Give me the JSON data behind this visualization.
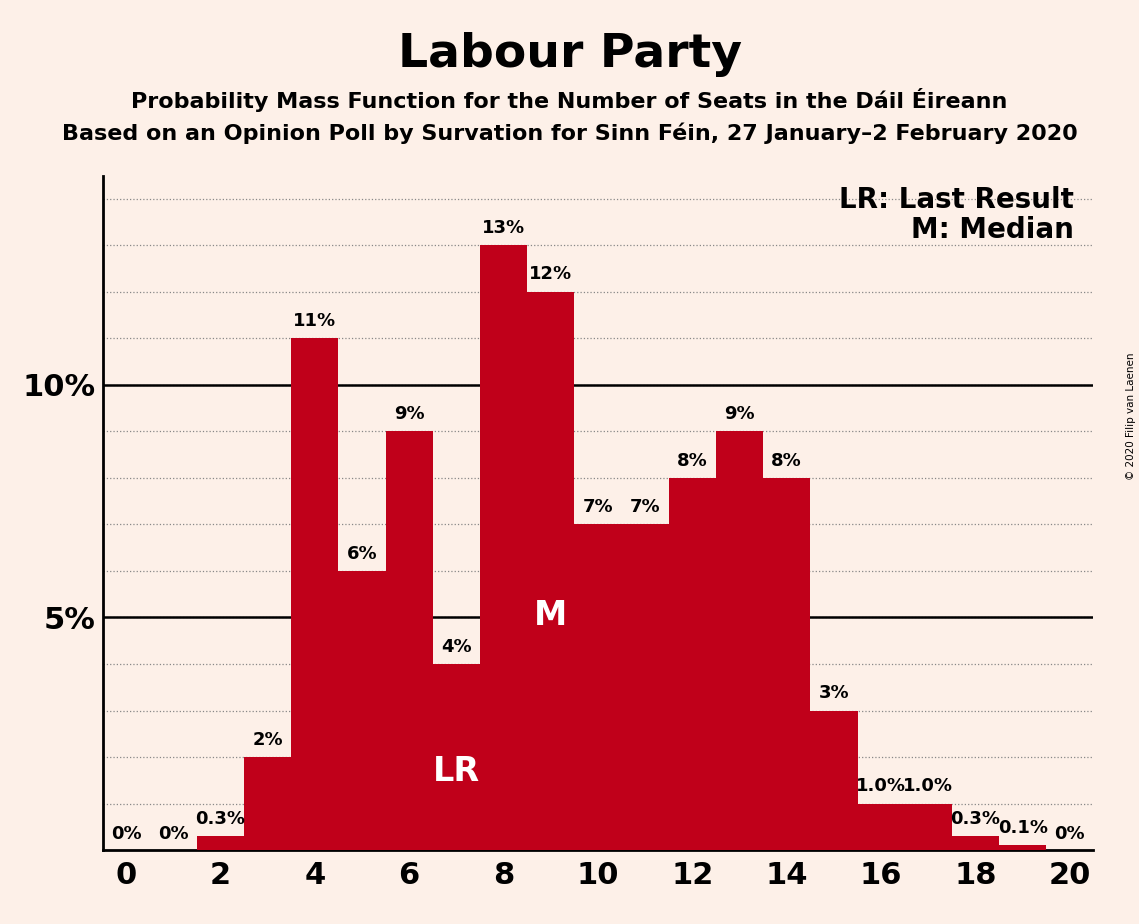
{
  "title": "Labour Party",
  "subtitle1": "Probability Mass Function for the Number of Seats in the Dáil Éireann",
  "subtitle2": "Based on an Opinion Poll by Survation for Sinn Féin, 27 January–2 February 2020",
  "copyright": "© 2020 Filip van Laenen",
  "seats": [
    0,
    1,
    2,
    3,
    4,
    5,
    6,
    7,
    8,
    9,
    10,
    11,
    12,
    13,
    14,
    15,
    16,
    17,
    18,
    19,
    20
  ],
  "probabilities": [
    0.0,
    0.0,
    0.3,
    2.0,
    11.0,
    6.0,
    9.0,
    4.0,
    13.0,
    12.0,
    7.0,
    7.0,
    8.0,
    9.0,
    8.0,
    3.0,
    1.0,
    1.0,
    0.3,
    0.1,
    0.0
  ],
  "bar_color": "#C0001A",
  "background_color": "#FDF0E8",
  "labels": [
    "0%",
    "0%",
    "0.3%",
    "2%",
    "11%",
    "6%",
    "9%",
    "4%",
    "13%",
    "12%",
    "7%",
    "7%",
    "8%",
    "9%",
    "8%",
    "3%",
    "1.0%",
    "1.0%",
    "0.3%",
    "0.1%",
    "0%"
  ],
  "median_seat": 9,
  "lr_seat": 7,
  "xlim": [
    -0.5,
    20.5
  ],
  "ylim": [
    0,
    14.5
  ],
  "xticks": [
    0,
    2,
    4,
    6,
    8,
    10,
    12,
    14,
    16,
    18,
    20
  ],
  "grid_color": "#888888",
  "lr_label": "LR",
  "median_label": "M",
  "legend_lr": "LR: Last Result",
  "legend_m": "M: Median",
  "title_fontsize": 34,
  "subtitle_fontsize": 16,
  "bar_label_fontsize": 13,
  "axis_tick_fontsize": 22,
  "legend_fontsize": 20,
  "inner_label_fontsize": 24
}
